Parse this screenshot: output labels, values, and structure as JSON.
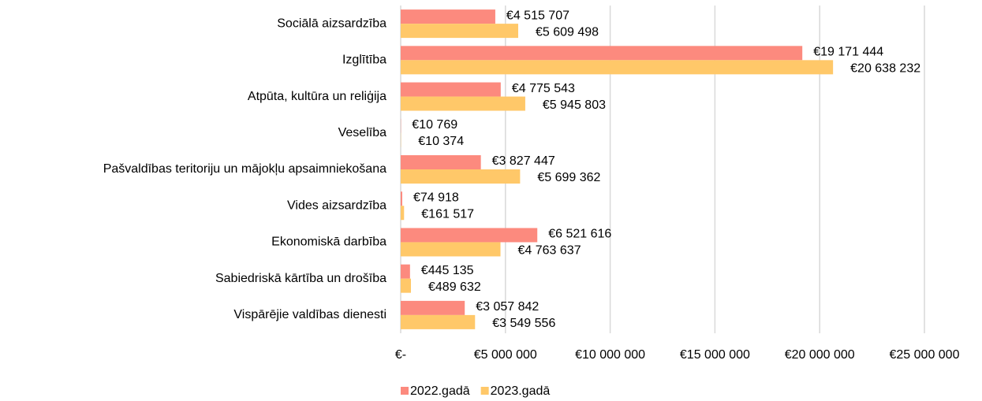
{
  "chart_data": {
    "type": "hbar",
    "categories": [
      "Sociālā aizsardzība",
      "Izglītība",
      "Atpūta, kultūra un reliģija",
      "Veselība",
      "Pašvaldības teritoriju un mājokļu apsaimniekošana",
      "Vides aizsardzība",
      "Ekonomiskā darbība",
      "Sabiedriskā kārtība un drošība",
      "Vispārējie valdības dienesti"
    ],
    "series": [
      {
        "name": "2022.gadā",
        "color": "#fc8a7e",
        "values": [
          4515707,
          19171444,
          4775543,
          10769,
          3827447,
          74918,
          6521616,
          445135,
          3057842
        ],
        "value_labels": [
          "€4 515 707",
          "€19 171 444",
          "€4 775 543",
          "€10 769",
          "€3 827 447",
          "€74 918",
          "€6 521 616",
          "€445 135",
          "€3 057 842"
        ]
      },
      {
        "name": "2023.gadā",
        "color": "#ffc869",
        "values": [
          5609498,
          20638232,
          5945803,
          10374,
          5699362,
          161517,
          4763637,
          489632,
          3549556
        ],
        "value_labels": [
          "€5 609 498",
          "€20 638 232",
          "€5 945 803",
          "€10 374",
          "€5 699 362",
          "€161 517",
          "€4 763 637",
          "€489 632",
          "€3 549 556"
        ]
      }
    ],
    "xlim": [
      0,
      25000000
    ],
    "xticks": [
      {
        "value": 0,
        "label": "€-"
      },
      {
        "value": 5000000,
        "label": "€5 000 000"
      },
      {
        "value": 10000000,
        "label": "€10 000 000"
      },
      {
        "value": 15000000,
        "label": "€15 000 000"
      },
      {
        "value": 20000000,
        "label": "€20 000 000"
      },
      {
        "value": 25000000,
        "label": "€25 000 000"
      }
    ],
    "grid": true,
    "legend": "bottom"
  }
}
